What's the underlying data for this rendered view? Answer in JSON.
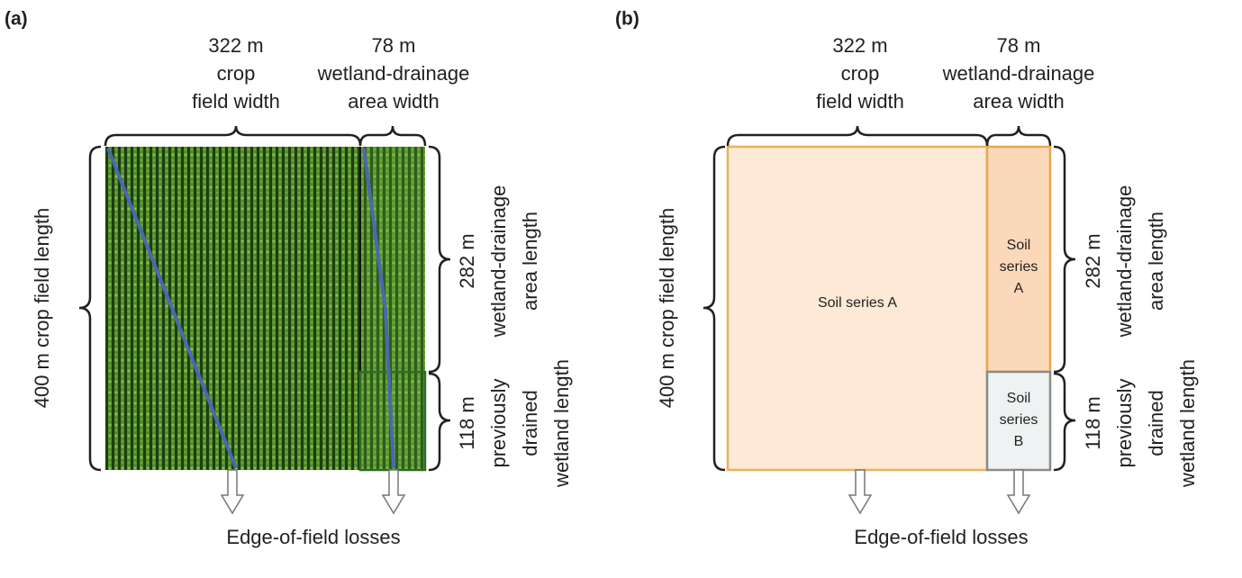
{
  "panels": [
    {
      "label": "(a)",
      "crop_width": [
        "322 m",
        "crop",
        "field width"
      ],
      "wetland_width": [
        "78 m",
        "wetland-drainage",
        "area width"
      ],
      "field_length": "400 m crop field length",
      "wetland_length": [
        "282 m",
        "wetland-drainage",
        "area length"
      ],
      "drained_length": [
        "118 m",
        "previously",
        "drained",
        "wetland length"
      ],
      "losses": "Edge-of-field losses"
    },
    {
      "label": "(b)",
      "crop_width": [
        "322 m",
        "crop",
        "field width"
      ],
      "wetland_width": [
        "78 m",
        "wetland-drainage",
        "area width"
      ],
      "field_length": "400 m crop field length",
      "wetland_length": [
        "282 m",
        "wetland-drainage",
        "area length"
      ],
      "drained_length": [
        "118 m",
        "previously",
        "drained",
        "wetland length"
      ],
      "losses": "Edge-of-field losses",
      "zones": {
        "crop": "Soil series A",
        "wetland": [
          "Soil",
          "series",
          "A"
        ],
        "drained": [
          "Soil",
          "series",
          "B"
        ]
      }
    }
  ]
}
